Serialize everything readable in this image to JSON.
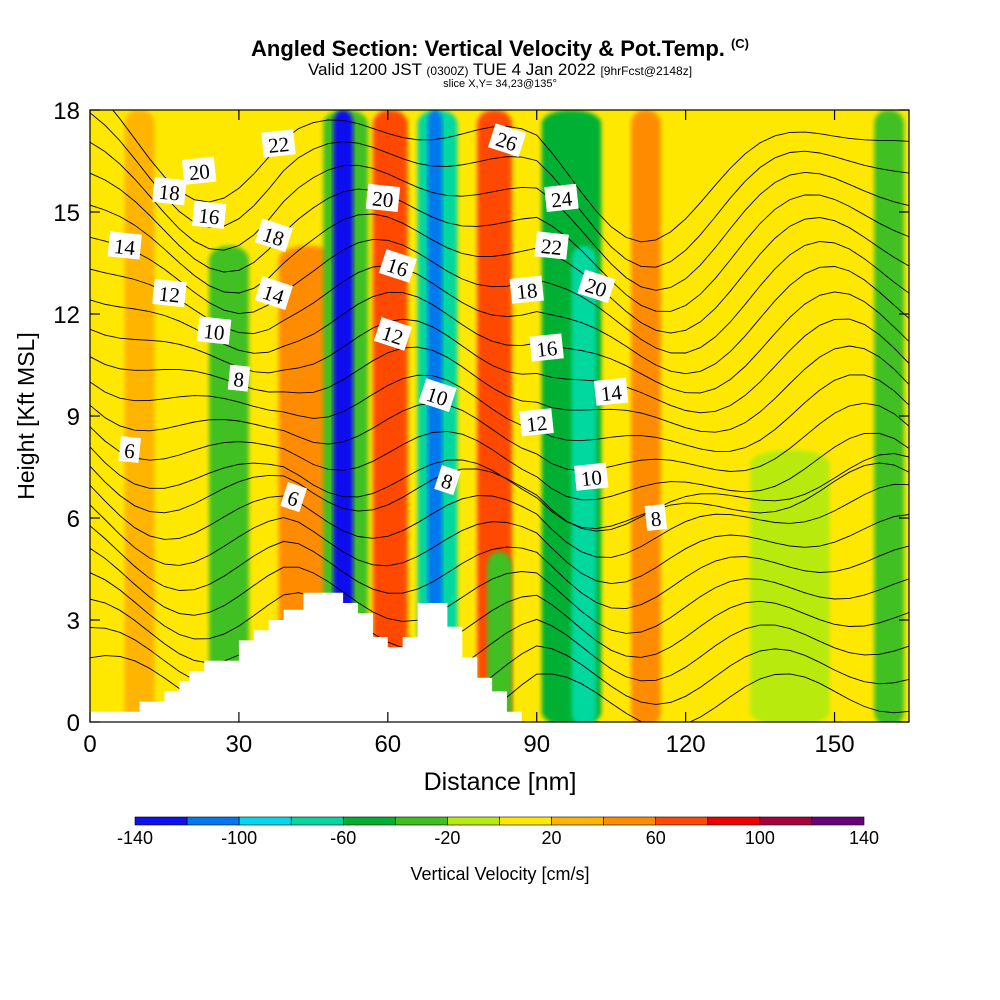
{
  "header": {
    "title": "Angled Section: Vertical Velocity & Pot.Temp.",
    "copyright": "(C)",
    "valid_prefix": "Valid 1200 JST",
    "valid_utc": "(0300Z)",
    "valid_date": "TUE 4 Jan 2022",
    "forecast": "[9hrFcst@2148z]",
    "slice": "slice X,Y= 34,23@135°"
  },
  "chart_data": {
    "type": "heatmap",
    "xlabel": "Distance [nm]",
    "ylabel": "Height [Kft MSL]",
    "xlim": [
      0,
      165
    ],
    "ylim": [
      0,
      18
    ],
    "xticks": [
      0,
      30,
      60,
      90,
      120,
      150
    ],
    "yticks": [
      0,
      3,
      6,
      9,
      12,
      15,
      18
    ],
    "colorbar": {
      "label": "Vertical Velocity [cm/s]",
      "tick_labels": [
        -140,
        -100,
        -60,
        -20,
        20,
        60,
        100,
        140
      ],
      "bounds": [
        -140,
        -120,
        -100,
        -80,
        -60,
        -40,
        -20,
        0,
        20,
        40,
        60,
        80,
        100,
        120,
        140
      ],
      "colors": [
        "#1010f0",
        "#0078f0",
        "#00d8f0",
        "#00d8a0",
        "#00b030",
        "#40c020",
        "#b8ea10",
        "#ffe800",
        "#ffb400",
        "#ff8c00",
        "#ff4800",
        "#ee0000",
        "#a8003c",
        "#6a0080"
      ]
    },
    "velocity_bands": [
      {
        "x": 7,
        "width": 6,
        "height": 18,
        "value": 25
      },
      {
        "x": 24,
        "width": 8,
        "height": 14,
        "value": -30
      },
      {
        "x": 38,
        "width": 12,
        "height": 14,
        "value": 42
      },
      {
        "x": 47,
        "width": 9,
        "height": 18,
        "value": -35
      },
      {
        "x": 49,
        "width": 4,
        "height": 18,
        "value": -125
      },
      {
        "x": 57,
        "width": 7,
        "height": 18,
        "value": 65
      },
      {
        "x": 66,
        "width": 8,
        "height": 18,
        "value": -80
      },
      {
        "x": 68,
        "width": 3,
        "height": 18,
        "value": -110
      },
      {
        "x": 78,
        "width": 7,
        "height": 18,
        "value": 68
      },
      {
        "x": 80,
        "width": 5,
        "height": 5,
        "value": -35
      },
      {
        "x": 91,
        "width": 12,
        "height": 18,
        "value": -55
      },
      {
        "x": 97,
        "width": 5,
        "height": 14,
        "value": -75
      },
      {
        "x": 109,
        "width": 6,
        "height": 18,
        "value": 52
      },
      {
        "x": 133,
        "width": 16,
        "height": 8,
        "value": -10
      },
      {
        "x": 158,
        "width": 6,
        "height": 18,
        "value": -25
      }
    ],
    "terrain_profile": {
      "x": [
        0,
        10,
        10,
        15,
        15,
        18,
        18,
        20,
        20,
        23,
        23,
        30,
        30,
        33,
        33,
        36,
        36,
        39,
        39,
        43,
        43,
        51,
        51,
        54,
        54,
        57,
        57,
        60,
        60,
        63,
        63,
        66,
        66,
        72,
        72,
        75,
        75,
        78,
        78,
        81,
        81,
        84,
        84,
        87,
        87,
        165
      ],
      "height": [
        0.3,
        0.3,
        0.6,
        0.6,
        0.9,
        0.9,
        1.2,
        1.2,
        1.5,
        1.5,
        1.8,
        1.8,
        2.4,
        2.4,
        2.7,
        2.7,
        3.0,
        3.0,
        3.3,
        3.3,
        3.8,
        3.8,
        3.5,
        3.5,
        3.2,
        3.2,
        2.5,
        2.5,
        2.2,
        2.2,
        2.5,
        2.5,
        3.5,
        3.5,
        2.8,
        2.8,
        1.9,
        1.9,
        1.3,
        1.3,
        0.9,
        0.9,
        0.3,
        0.3,
        0.0,
        0.0
      ]
    },
    "theta_contour_labels": [
      {
        "x": 38,
        "y": 17.0,
        "text": "22"
      },
      {
        "x": 59,
        "y": 15.4,
        "text": "20"
      },
      {
        "x": 84,
        "y": 17.1,
        "text": "26"
      },
      {
        "x": 95,
        "y": 15.4,
        "text": "24"
      },
      {
        "x": 93,
        "y": 14.0,
        "text": "22"
      },
      {
        "x": 102,
        "y": 12.8,
        "text": "20"
      },
      {
        "x": 22,
        "y": 16.2,
        "text": "20"
      },
      {
        "x": 16,
        "y": 15.6,
        "text": "18"
      },
      {
        "x": 37,
        "y": 14.3,
        "text": "18"
      },
      {
        "x": 88,
        "y": 12.7,
        "text": "18"
      },
      {
        "x": 24,
        "y": 14.9,
        "text": "16"
      },
      {
        "x": 62,
        "y": 13.4,
        "text": "16"
      },
      {
        "x": 92,
        "y": 11.0,
        "text": "16"
      },
      {
        "x": 7,
        "y": 14.0,
        "text": "14"
      },
      {
        "x": 37,
        "y": 12.6,
        "text": "14"
      },
      {
        "x": 105,
        "y": 9.7,
        "text": "14"
      },
      {
        "x": 16,
        "y": 12.6,
        "text": "12"
      },
      {
        "x": 61,
        "y": 11.4,
        "text": "12"
      },
      {
        "x": 90,
        "y": 8.8,
        "text": "12"
      },
      {
        "x": 25,
        "y": 11.5,
        "text": "10"
      },
      {
        "x": 70,
        "y": 9.6,
        "text": "10"
      },
      {
        "x": 101,
        "y": 7.2,
        "text": "10"
      },
      {
        "x": 30,
        "y": 10.1,
        "text": "8"
      },
      {
        "x": 72,
        "y": 7.1,
        "text": "8"
      },
      {
        "x": 114,
        "y": 6.0,
        "text": "8"
      },
      {
        "x": 8,
        "y": 8.0,
        "text": "6"
      },
      {
        "x": 41,
        "y": 6.6,
        "text": "6"
      }
    ]
  }
}
